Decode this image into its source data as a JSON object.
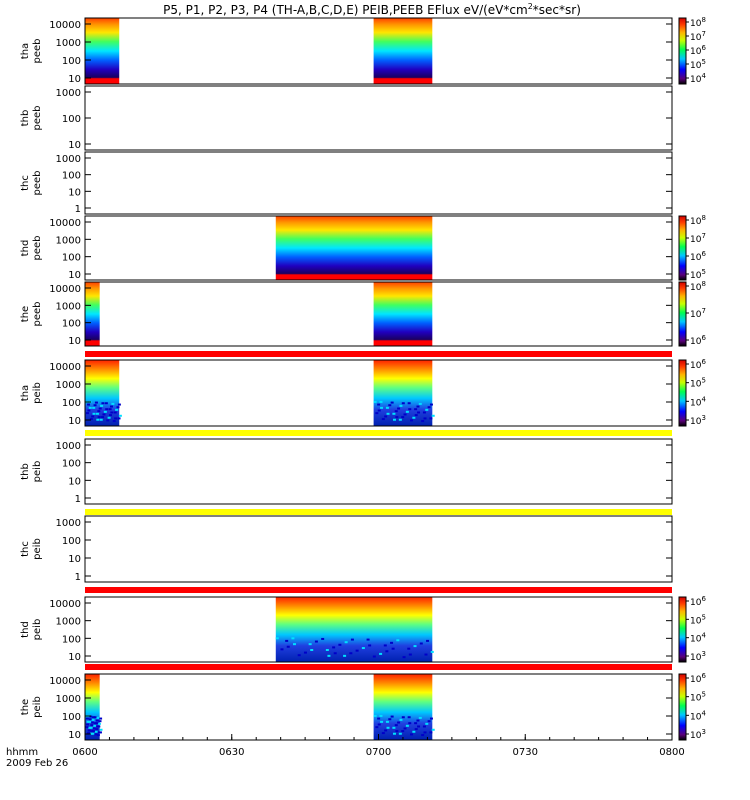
{
  "title": {
    "main": "P5, P1, P2, P3, P4 (TH-A,B,C,D,E) PEIB,PEEB EFlux eV/(eV*cm",
    "sup": "2",
    "tail": "*sec*sr)"
  },
  "colors": {
    "gap_red": "#ff0000",
    "gap_yellow": "#ffff00",
    "axis": "#000000"
  },
  "chart_data": {
    "type": "heatmap",
    "x_axis": {
      "ticks": [
        "0600",
        "0630",
        "0700",
        "0730",
        "0800"
      ],
      "start_minutes": 360,
      "end_minutes": 480,
      "label": "hhmm",
      "date": "2009 Feb 26"
    },
    "colormap": "rainbow (purple-blue-cyan-green-yellow-red)",
    "panels": [
      {
        "probe": "tha",
        "product": "peeb",
        "yticks": [
          "10",
          "100",
          "1000",
          "10000"
        ],
        "has_colorbar": true,
        "colorbar_exponents": [
          8,
          7,
          6,
          5,
          4
        ],
        "data_intervals_hhmm": [
          [
            "0600",
            "0607"
          ],
          [
            "0659",
            "0711"
          ]
        ],
        "band_below": null
      },
      {
        "probe": "thb",
        "product": "peeb",
        "yticks": [
          "10",
          "100",
          "1000"
        ],
        "has_colorbar": false,
        "colorbar_exponents": [],
        "data_intervals_hhmm": [],
        "band_below": null
      },
      {
        "probe": "thc",
        "product": "peeb",
        "yticks": [
          "1",
          "10",
          "100",
          "1000"
        ],
        "has_colorbar": false,
        "colorbar_exponents": [],
        "data_intervals_hhmm": [],
        "band_below": null
      },
      {
        "probe": "thd",
        "product": "peeb",
        "yticks": [
          "10",
          "100",
          "1000",
          "10000"
        ],
        "has_colorbar": true,
        "colorbar_exponents": [
          8,
          7,
          6,
          5
        ],
        "data_intervals_hhmm": [
          [
            "0639",
            "0711"
          ]
        ],
        "band_below": null
      },
      {
        "probe": "the",
        "product": "peeb",
        "yticks": [
          "10",
          "100",
          "1000",
          "10000"
        ],
        "has_colorbar": true,
        "colorbar_exponents": [
          8,
          7,
          6
        ],
        "data_intervals_hhmm": [
          [
            "0600",
            "0603"
          ],
          [
            "0659",
            "0711"
          ]
        ],
        "band_below": "red"
      },
      {
        "probe": "tha",
        "product": "peib",
        "yticks": [
          "10",
          "100",
          "1000",
          "10000"
        ],
        "has_colorbar": true,
        "colorbar_exponents": [
          6,
          5,
          4,
          3
        ],
        "data_intervals_hhmm": [
          [
            "0600",
            "0607"
          ],
          [
            "0659",
            "0711"
          ]
        ],
        "band_below": "yellow"
      },
      {
        "probe": "thb",
        "product": "peib",
        "yticks": [
          "1",
          "10",
          "100",
          "1000"
        ],
        "has_colorbar": false,
        "colorbar_exponents": [],
        "data_intervals_hhmm": [],
        "band_below": "yellow"
      },
      {
        "probe": "thc",
        "product": "peib",
        "yticks": [
          "1",
          "10",
          "100",
          "1000"
        ],
        "has_colorbar": false,
        "colorbar_exponents": [],
        "data_intervals_hhmm": [],
        "band_below": "red"
      },
      {
        "probe": "thd",
        "product": "peib",
        "yticks": [
          "10",
          "100",
          "1000",
          "10000"
        ],
        "has_colorbar": true,
        "colorbar_exponents": [
          6,
          5,
          4,
          3
        ],
        "data_intervals_hhmm": [
          [
            "0639",
            "0711"
          ]
        ],
        "band_below": "red"
      },
      {
        "probe": "the",
        "product": "peib",
        "yticks": [
          "10",
          "100",
          "1000",
          "10000"
        ],
        "has_colorbar": true,
        "colorbar_exponents": [
          6,
          5,
          4,
          3
        ],
        "data_intervals_hhmm": [
          [
            "0600",
            "0603"
          ],
          [
            "0659",
            "0711"
          ]
        ],
        "band_below": null
      }
    ]
  }
}
